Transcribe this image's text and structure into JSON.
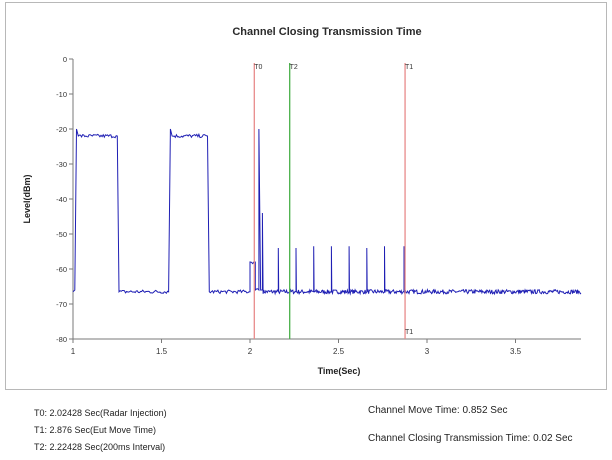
{
  "chart_data": {
    "type": "line",
    "title": "Channel Closing Transmission Time",
    "xlabel": "Time(Sec)",
    "ylabel": "Level(dBm)",
    "xlim": [
      1,
      3.87
    ],
    "ylim": [
      -80,
      0
    ],
    "x_ticks": [
      1,
      1.5,
      2,
      2.5,
      3,
      3.5
    ],
    "x_tick_labels": [
      "1",
      "1.5",
      "2",
      "2.5",
      "3",
      "3.5"
    ],
    "y_ticks": [
      0,
      -10,
      -20,
      -30,
      -40,
      -50,
      -60,
      -70,
      -80
    ],
    "y_tick_labels": [
      "0",
      "-10",
      "-20",
      "-30",
      "-40",
      "-50",
      "-60",
      "-70",
      "-80"
    ],
    "grid": false,
    "line_color": "#1f1fb4",
    "noise_floor": -66.5,
    "series": [
      {
        "x": [
          1.0,
          1.01,
          1.02,
          1.03,
          1.25,
          1.26,
          1.54,
          1.55,
          1.56,
          1.76,
          1.77,
          2.0,
          2.0,
          2.03,
          2.03,
          2.05,
          2.05,
          2.06,
          2.07,
          2.07
        ],
        "y": [
          -66.5,
          -66,
          -20,
          -22,
          -22,
          -66.5,
          -66.5,
          -20,
          -22,
          -22,
          -66.5,
          -66.5,
          -58,
          -58,
          -66,
          -66,
          -20,
          -66,
          -66,
          -44
        ]
      }
    ],
    "pulses": [
      {
        "x": 2.16,
        "y": -54
      },
      {
        "x": 2.26,
        "y": -54
      },
      {
        "x": 2.36,
        "y": -53.5
      },
      {
        "x": 2.46,
        "y": -53.5
      },
      {
        "x": 2.56,
        "y": -53.5
      },
      {
        "x": 2.66,
        "y": -54
      },
      {
        "x": 2.76,
        "y": -53.5
      },
      {
        "x": 2.87,
        "y": -53.5
      }
    ],
    "markers": [
      {
        "label": "T0",
        "x": 2.02428,
        "color": "#e88a8a"
      },
      {
        "label": "T2",
        "x": 2.22428,
        "color": "#49b049"
      },
      {
        "label": "T1",
        "x": 2.876,
        "color": "#e88a8a",
        "bottom_label": "T1"
      }
    ]
  },
  "notes_left": [
    "T0: 2.02428 Sec(Radar Injection)",
    "T1: 2.876 Sec(Eut Move Time)",
    "T2: 2.22428 Sec(200ms Interval)"
  ],
  "notes_right": [
    "Channel Move Time: 0.852 Sec",
    "Channel Closing Transmission Time: 0.02 Sec"
  ]
}
